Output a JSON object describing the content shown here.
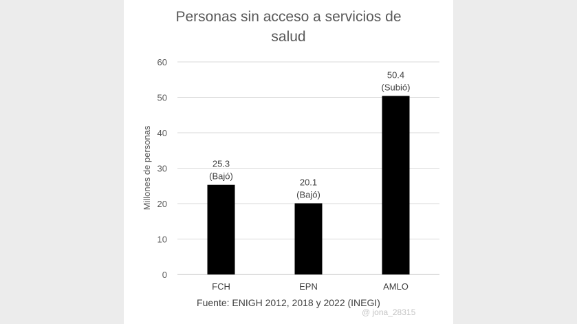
{
  "chart_data": {
    "type": "bar",
    "title_lines": [
      "Personas sin acceso a servicios de",
      "salud"
    ],
    "ylabel": "Millones de personas",
    "xlabel": "",
    "categories": [
      "FCH",
      "EPN",
      "AMLO"
    ],
    "values": [
      25.3,
      20.1,
      50.4
    ],
    "data_labels": [
      [
        "25.3",
        "(Bajó)"
      ],
      [
        "20.1",
        "(Bajó)"
      ],
      [
        "50.4",
        "(Subió)"
      ]
    ],
    "ylim": [
      0,
      60
    ],
    "yticks": [
      0,
      10,
      20,
      30,
      40,
      50,
      60
    ],
    "grid": true,
    "legend": "none",
    "bar_color": "#000000",
    "source": "Fuente: ENIGH 2012, 2018 y 2022 (INEGI)"
  },
  "watermark": "@ jona_28315"
}
